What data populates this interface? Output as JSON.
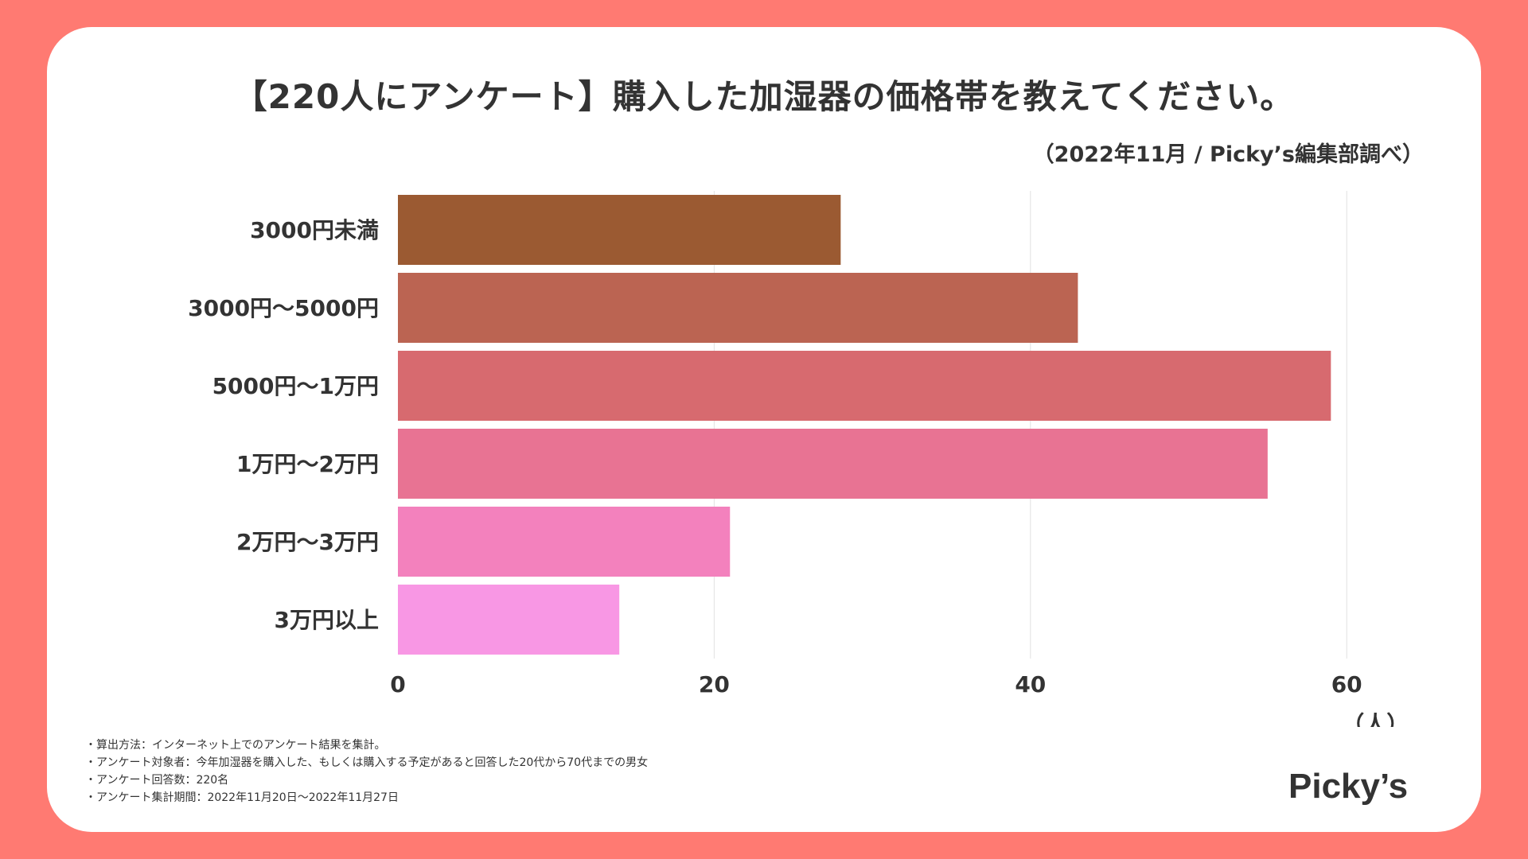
{
  "background_color": "#ff7a72",
  "title": "【220人にアンケート】購入した加湿器の価格帯を教えてください。",
  "source": "（2022年11月 / Picky’s編集部調べ）",
  "chart_data": {
    "type": "bar",
    "orientation": "horizontal",
    "categories": [
      "3000円未満",
      "3000円〜5000円",
      "5000円〜1万円",
      "1万円〜2万円",
      "2万円〜3万円",
      "3万円以上"
    ],
    "values": [
      28,
      43,
      59,
      55,
      21,
      14
    ],
    "colors": [
      "#9b5a32",
      "#bb6452",
      "#d76a6f",
      "#e87393",
      "#f381bd",
      "#f897e4"
    ],
    "xlim": [
      0,
      65
    ],
    "xticks": [
      0,
      20,
      40,
      60
    ],
    "xlabel": "（人）",
    "grid": true
  },
  "notes": [
    "・算出方法：インターネット上でのアンケート結果を集計。",
    "・アンケート対象者：今年加湿器を購入した、もしくは購入する予定があると回答した20代から70代までの男女",
    "・アンケート回答数：220名",
    "・アンケート集計期間：2022年11月20日〜2022年11月27日"
  ],
  "logo_text": "Picky’s"
}
